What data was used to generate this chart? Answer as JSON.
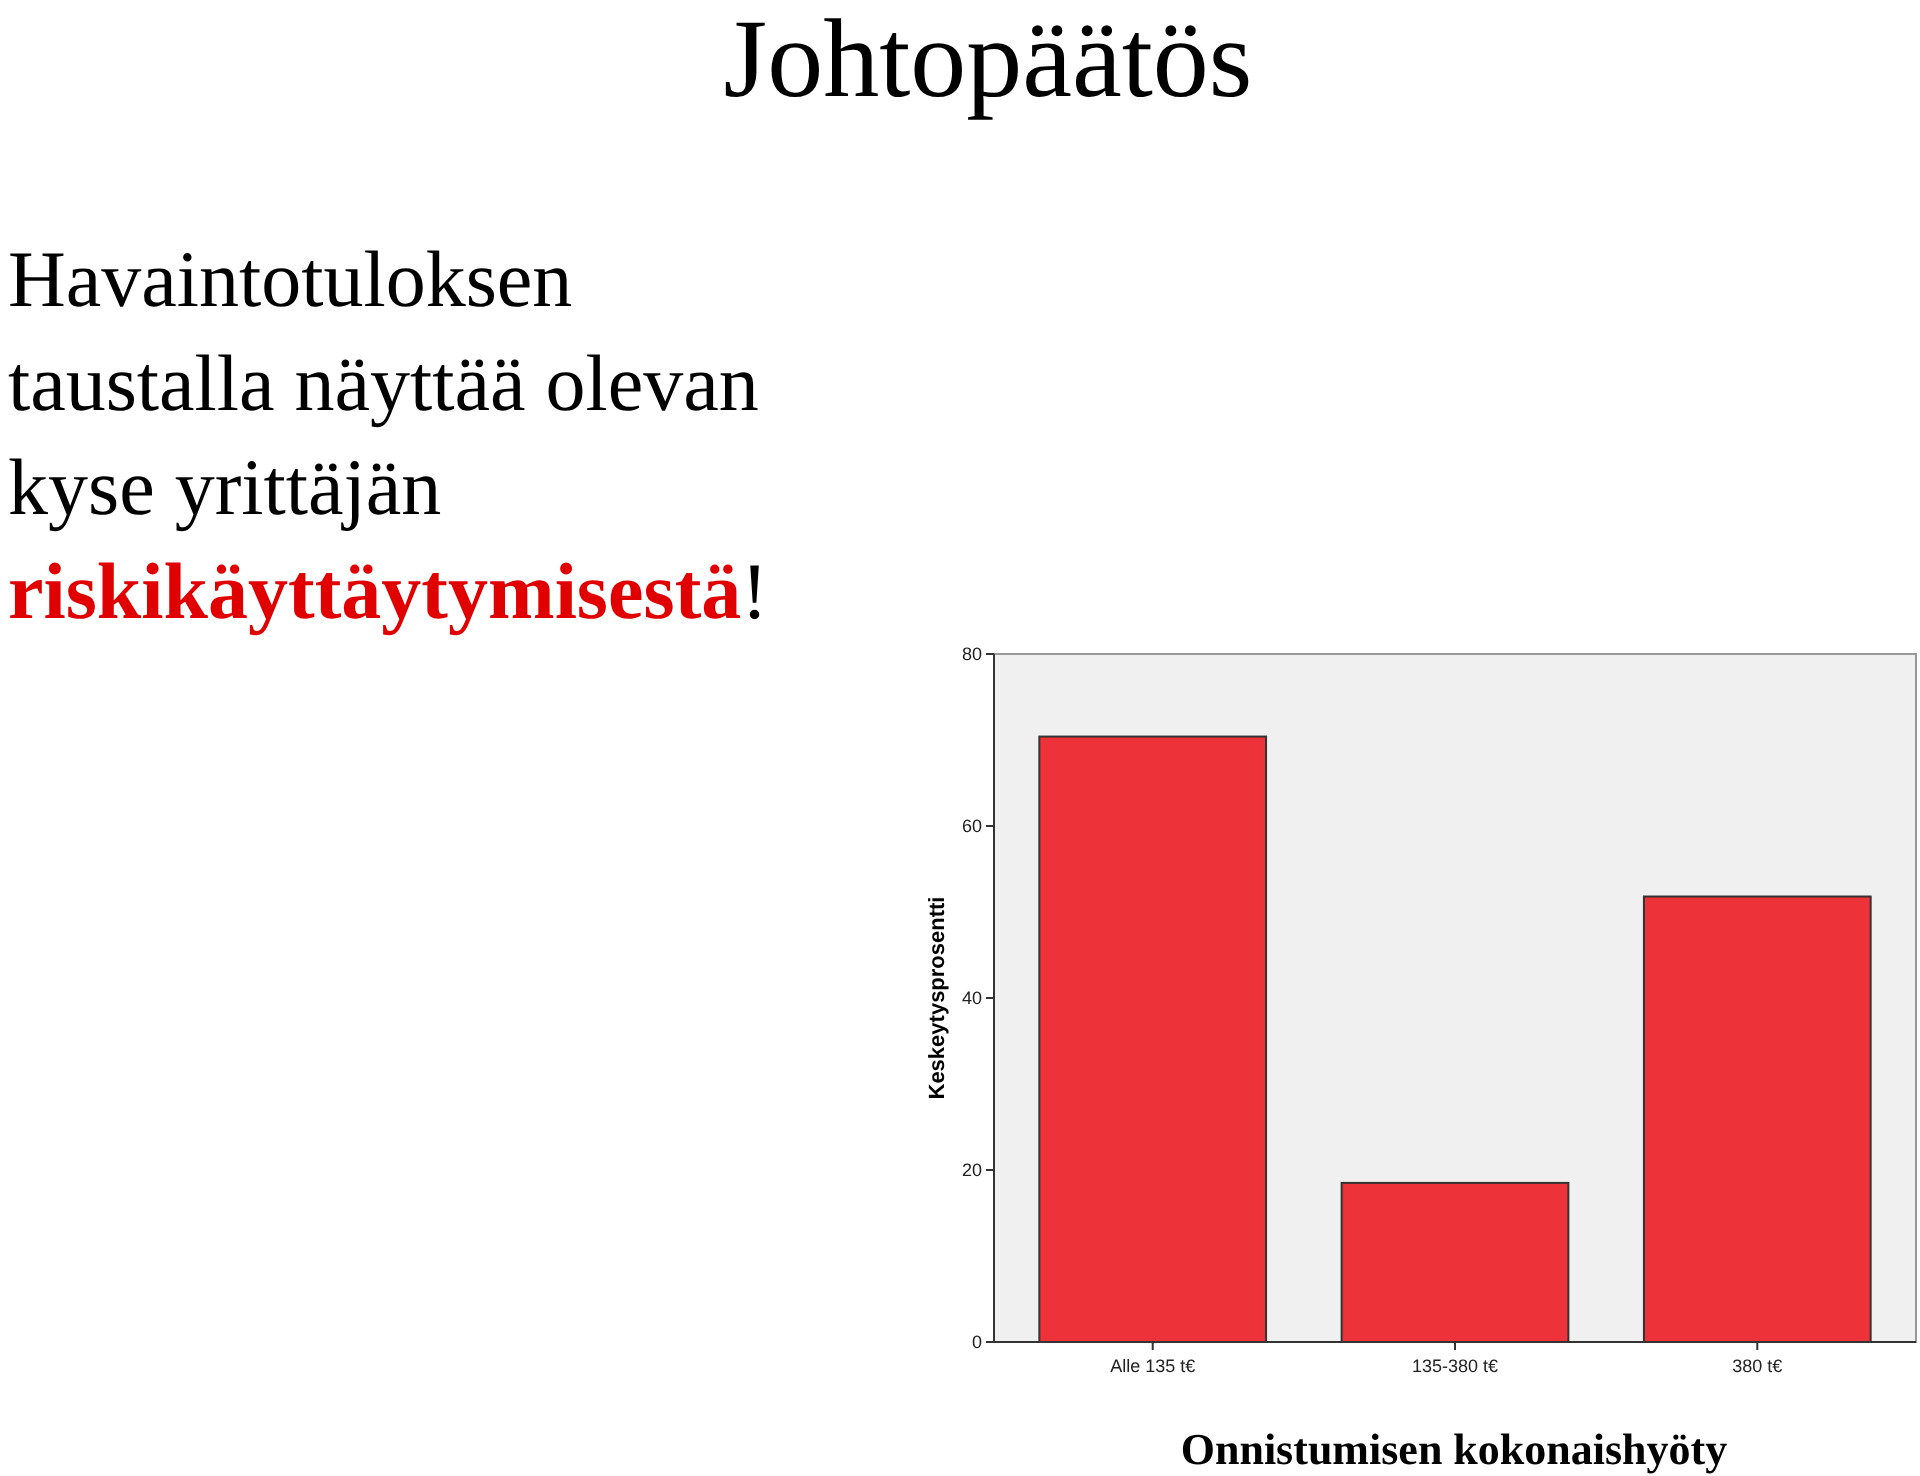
{
  "chart_data": {
    "type": "bar",
    "title": "Johtopäätös",
    "xlabel": "Onnistumisen kokonaishyöty",
    "ylabel": "Keskeytysprosentti",
    "annotations": [
      "Havaintotuloksen taustalla näyttää olevan kyse yrittäjän",
      "riskikäyttäytymisestä!"
    ],
    "categories": [
      "Alle 135 t€",
      "135-380 t€",
      "380 t€"
    ],
    "values": [
      70.4,
      18.5,
      51.8
    ],
    "color": "#ee3239",
    "ylim": [
      0,
      80
    ],
    "yticks": [
      0,
      20,
      40,
      60,
      80
    ],
    "grid": false
  }
}
